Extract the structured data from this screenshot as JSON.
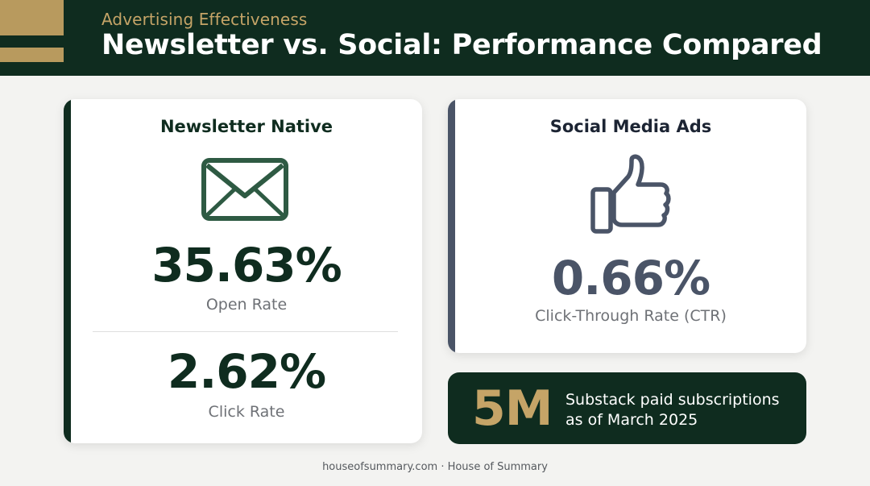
{
  "header": {
    "kicker": "Advertising Effectiveness",
    "title": "Newsletter vs. Social: Performance Compared",
    "accent_color": "#b89a5e",
    "background_color": "#0f2c1f"
  },
  "newsletter_card": {
    "title": "Newsletter Native",
    "icon": "envelope-icon",
    "open_rate_value": "35.63%",
    "open_rate_label": "Open Rate",
    "click_rate_value": "2.62%",
    "click_rate_label": "Click Rate"
  },
  "social_card": {
    "title": "Social Media Ads",
    "icon": "thumbs-up-icon",
    "ctr_value": "0.66%",
    "ctr_label": "Click-Through Rate (CTR)"
  },
  "stat_callout": {
    "value": "5M",
    "text": "Substack paid subscriptions as of March 2025"
  },
  "footer": {
    "text": "houseofsummary.com · House of Summary"
  }
}
